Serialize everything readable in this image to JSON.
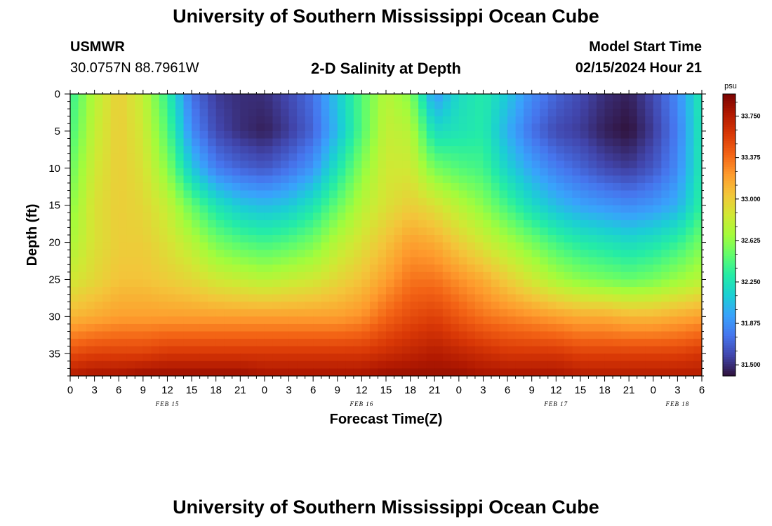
{
  "header": {
    "title": "University of Southern Mississippi Ocean Cube",
    "station_id": "USMWR",
    "coords": "30.0757N  88.7961W",
    "plot_title": "2-D Salinity at Depth",
    "model_start_label": "Model Start Time",
    "model_start_value": "02/15/2024 Hour 21"
  },
  "footer": {
    "title": "University of Southern Mississippi Ocean Cube"
  },
  "colors": {
    "scale": [
      "#30123b",
      "#4145ab",
      "#4675ed",
      "#39a2fc",
      "#1bcfd4",
      "#24eca6",
      "#61fc6c",
      "#a4fc3b",
      "#d1e834",
      "#f3c63a",
      "#fe9b2d",
      "#f36315",
      "#d93806",
      "#b11901",
      "#7a0402"
    ]
  },
  "chart_data": {
    "type": "heatmap",
    "xlabel": "Forecast Time(Z)",
    "ylabel": "Depth (ft)",
    "x_unit": "hours since 02/15/2024 00Z",
    "xlim": [
      0,
      78
    ],
    "ylim": [
      0,
      38
    ],
    "x_tick_labels": [
      "0",
      "3",
      "6",
      "9",
      "12",
      "15",
      "18",
      "21",
      "0",
      "3",
      "6",
      "9",
      "12",
      "15",
      "18",
      "21",
      "0",
      "3",
      "6",
      "9",
      "12",
      "15",
      "18",
      "21",
      "0",
      "3",
      "6"
    ],
    "y_ticks": [
      0,
      5,
      10,
      15,
      20,
      25,
      30,
      35
    ],
    "date_labels": [
      {
        "label": "FEB 15",
        "hour": 12
      },
      {
        "label": "FEB 16",
        "hour": 36
      },
      {
        "label": "FEB 17",
        "hour": 60
      },
      {
        "label": "FEB 18",
        "hour": 75
      }
    ],
    "colorbar": {
      "unit": "psu",
      "min": 31.4,
      "max": 33.95,
      "ticks": [
        "33.750",
        "33.375",
        "33.000",
        "32.625",
        "32.250",
        "31.875",
        "31.500"
      ]
    },
    "time_hours": [
      0,
      3,
      6,
      9,
      12,
      15,
      18,
      21,
      24,
      27,
      30,
      33,
      36,
      39,
      42,
      45,
      48,
      51,
      54,
      57,
      60,
      63,
      66,
      69,
      72,
      75,
      78
    ],
    "depths_ft": [
      0,
      5,
      10,
      15,
      20,
      25,
      30,
      35,
      38
    ],
    "values": [
      [
        32.35,
        32.75,
        33.0,
        32.8,
        32.35,
        31.75,
        31.55,
        31.5,
        31.5,
        31.6,
        31.75,
        32.1,
        32.45,
        32.75,
        32.6,
        31.9,
        32.2,
        32.3,
        32.1,
        31.85,
        31.7,
        31.6,
        31.5,
        31.45,
        31.6,
        31.85,
        32.3
      ],
      [
        32.4,
        32.8,
        33.0,
        32.85,
        32.45,
        31.85,
        31.6,
        31.5,
        31.45,
        31.55,
        31.7,
        32.05,
        32.45,
        32.8,
        32.75,
        32.2,
        32.25,
        32.3,
        32.0,
        31.75,
        31.6,
        31.55,
        31.45,
        31.4,
        31.55,
        31.8,
        32.3
      ],
      [
        32.5,
        32.85,
        33.0,
        32.9,
        32.6,
        32.1,
        31.8,
        31.7,
        31.65,
        31.75,
        31.9,
        32.25,
        32.6,
        32.85,
        32.85,
        32.55,
        32.45,
        32.4,
        32.15,
        31.95,
        31.8,
        31.7,
        31.6,
        31.55,
        31.65,
        31.85,
        32.3
      ],
      [
        32.6,
        32.9,
        33.0,
        32.95,
        32.8,
        32.5,
        32.25,
        32.1,
        32.05,
        32.1,
        32.25,
        32.5,
        32.75,
        32.9,
        33.0,
        32.9,
        32.75,
        32.6,
        32.4,
        32.2,
        32.05,
        31.95,
        31.9,
        31.85,
        31.9,
        32.0,
        32.35
      ],
      [
        32.7,
        32.9,
        33.0,
        33.0,
        32.9,
        32.75,
        32.55,
        32.45,
        32.4,
        32.45,
        32.55,
        32.75,
        32.9,
        33.05,
        33.2,
        33.15,
        33.0,
        32.85,
        32.7,
        32.55,
        32.4,
        32.3,
        32.25,
        32.2,
        32.25,
        32.35,
        32.55
      ],
      [
        32.85,
        32.95,
        33.05,
        33.05,
        33.0,
        32.95,
        32.85,
        32.8,
        32.75,
        32.8,
        32.85,
        32.95,
        33.05,
        33.2,
        33.35,
        33.35,
        33.25,
        33.15,
        33.0,
        32.85,
        32.7,
        32.6,
        32.55,
        32.5,
        32.55,
        32.65,
        32.75
      ],
      [
        33.1,
        33.15,
        33.2,
        33.2,
        33.2,
        33.2,
        33.2,
        33.2,
        33.2,
        33.2,
        33.2,
        33.2,
        33.25,
        33.4,
        33.5,
        33.55,
        33.45,
        33.35,
        33.3,
        33.25,
        33.2,
        33.15,
        33.15,
        33.1,
        33.1,
        33.15,
        33.2
      ],
      [
        33.5,
        33.55,
        33.55,
        33.55,
        33.6,
        33.6,
        33.6,
        33.6,
        33.6,
        33.6,
        33.6,
        33.6,
        33.6,
        33.65,
        33.7,
        33.75,
        33.7,
        33.65,
        33.6,
        33.6,
        33.6,
        33.55,
        33.55,
        33.55,
        33.55,
        33.55,
        33.6
      ],
      [
        33.75,
        33.8,
        33.8,
        33.85,
        33.85,
        33.85,
        33.85,
        33.85,
        33.8,
        33.8,
        33.8,
        33.8,
        33.8,
        33.85,
        33.85,
        33.85,
        33.85,
        33.8,
        33.8,
        33.8,
        33.8,
        33.75,
        33.75,
        33.75,
        33.75,
        33.75,
        33.75
      ]
    ]
  }
}
